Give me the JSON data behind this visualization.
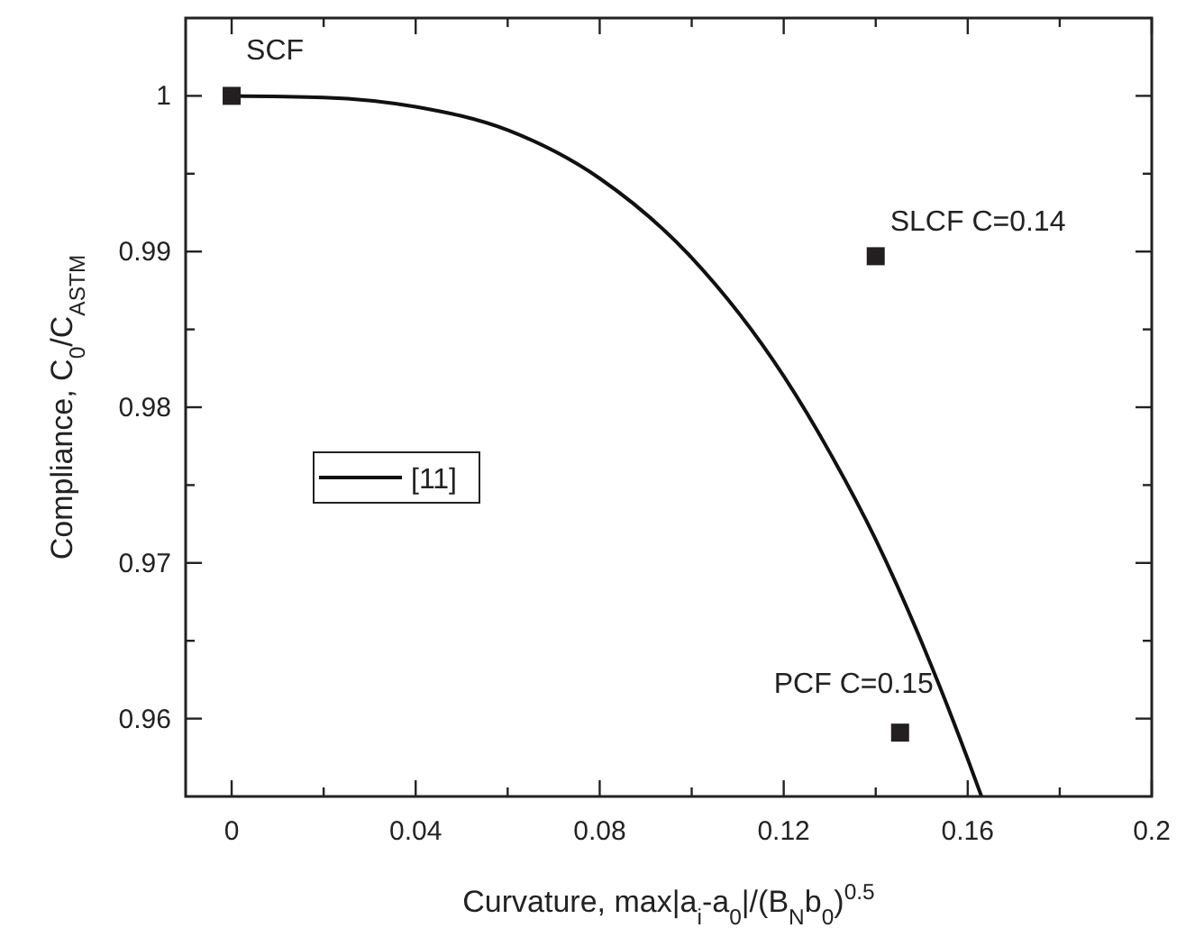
{
  "chart_data": {
    "type": "line",
    "xlabel": "Curvature, max|a$_{i}$-a$_{0}$|/(B$_{N}$b$_{0}$)$^{0.5}$",
    "ylabel": "Compliance, C$_{0}$/C$_{ASTM}$",
    "xlim": [
      -0.01,
      0.2
    ],
    "xticks": [
      0,
      {
        "value": 0.02,
        "label": null
      },
      0.04,
      {
        "value": 0.06,
        "label": null
      },
      0.08,
      {
        "value": 0.1,
        "label": null
      },
      0.12,
      {
        "value": 0.14,
        "label": null
      },
      0.16,
      {
        "value": 0.18,
        "label": null
      },
      0.2
    ],
    "ylim": [
      0.955,
      1.005
    ],
    "yticks": [
      {
        "value": 0.96,
        "label": "0.96"
      },
      {
        "value": 0.965,
        "label": null
      },
      {
        "value": 0.97,
        "label": "0.97"
      },
      {
        "value": 0.975,
        "label": null
      },
      {
        "value": 0.98,
        "label": "0.98"
      },
      {
        "value": 0.985,
        "label": null
      },
      {
        "value": 0.99,
        "label": "0.99"
      },
      {
        "value": 0.995,
        "label": null
      },
      1
    ],
    "series": [
      {
        "name": "[11]",
        "color": "#111111",
        "line_style": "solid",
        "marker": "none",
        "x": [
          0,
          0.02,
          0.04,
          0.06,
          0.08,
          0.1,
          0.12,
          0.13,
          0.14,
          0.15,
          0.16,
          0.163
        ],
        "values": [
          1,
          0.9999,
          0.9993,
          0.9978,
          0.9947,
          0.9896,
          0.982,
          0.9771,
          0.9715,
          0.9649,
          0.9574,
          0.955
        ]
      },
      {
        "type": "scatter",
        "color": "#231f20",
        "marker": "square",
        "x": [
          0,
          0.14,
          0.1453
        ],
        "values": [
          1,
          0.9897,
          0.9591
        ]
      }
    ],
    "annotations": [
      {
        "text": "SCF",
        "x": 0,
        "y": 1
      },
      {
        "text": "SLCF C=0.14",
        "x": 0.14,
        "y": 0.9897
      },
      {
        "text": "PCF C=0.15",
        "x": 0.1453,
        "y": 0.9591
      }
    ],
    "grid": false,
    "legend": "left"
  }
}
